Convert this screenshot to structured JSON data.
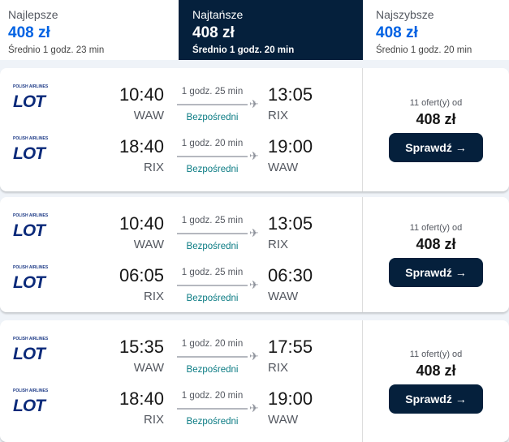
{
  "tabs": [
    {
      "label": "Najlepsze",
      "price": "408 zł",
      "avg": "Średnio 1 godz. 23 min"
    },
    {
      "label": "Najtańsze",
      "price": "408 zł",
      "avg": "Średnio 1 godz. 20 min",
      "active": true
    },
    {
      "label": "Najszybsze",
      "price": "408 zł",
      "avg": "Średnio 1 godz. 20 min"
    }
  ],
  "airline_logo": {
    "small": "POLISH AIRLINES",
    "big": "LOT"
  },
  "results": [
    {
      "legs": [
        {
          "dep_time": "10:40",
          "dep_ap": "WAW",
          "duration": "1 godz. 25 min",
          "stops": "Bezpośredni",
          "arr_time": "13:05",
          "arr_ap": "RIX"
        },
        {
          "dep_time": "18:40",
          "dep_ap": "RIX",
          "duration": "1 godz. 20 min",
          "stops": "Bezpośredni",
          "arr_time": "19:00",
          "arr_ap": "WAW"
        }
      ],
      "offers": "11 ofert(y) od",
      "price": "408 zł",
      "button": "Sprawdź →"
    },
    {
      "legs": [
        {
          "dep_time": "10:40",
          "dep_ap": "WAW",
          "duration": "1 godz. 25 min",
          "stops": "Bezpośredni",
          "arr_time": "13:05",
          "arr_ap": "RIX"
        },
        {
          "dep_time": "06:05",
          "dep_ap": "RIX",
          "duration": "1 godz. 25 min",
          "stops": "Bezpośredni",
          "arr_time": "06:30",
          "arr_ap": "WAW"
        }
      ],
      "offers": "11 ofert(y) od",
      "price": "408 zł",
      "button": "Sprawdź →"
    },
    {
      "legs": [
        {
          "dep_time": "15:35",
          "dep_ap": "WAW",
          "duration": "1 godz. 20 min",
          "stops": "Bezpośredni",
          "arr_time": "17:55",
          "arr_ap": "RIX"
        },
        {
          "dep_time": "18:40",
          "dep_ap": "RIX",
          "duration": "1 godz. 20 min",
          "stops": "Bezpośredni",
          "arr_time": "19:00",
          "arr_ap": "WAW"
        }
      ],
      "offers": "11 ofert(y) od",
      "price": "408 zł",
      "button": "Sprawdź →"
    }
  ]
}
